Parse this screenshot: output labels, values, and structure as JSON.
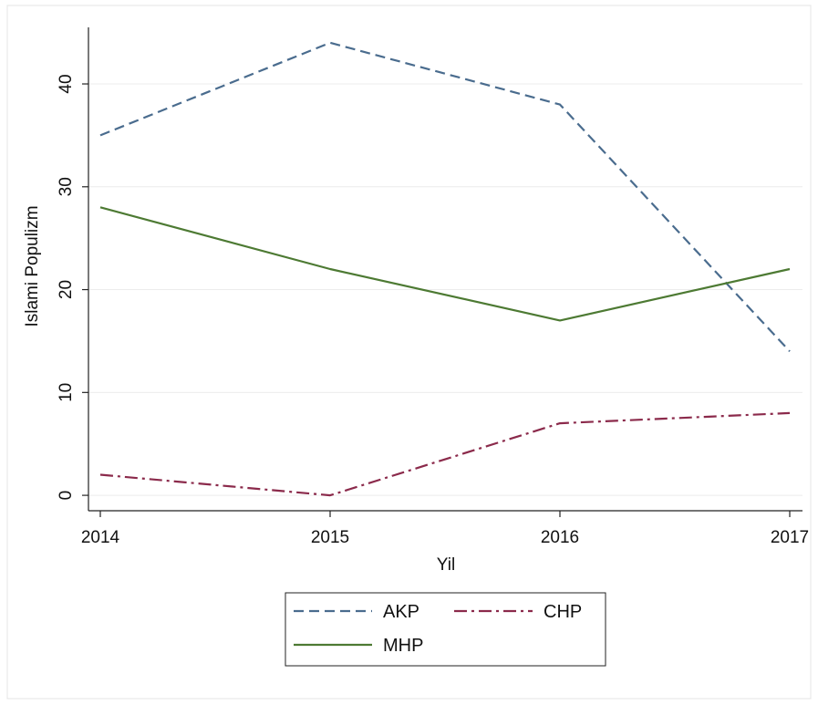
{
  "chart_data": {
    "type": "line",
    "title": "",
    "xlabel": "Yil",
    "ylabel": "Islami Populizm",
    "x": [
      2014,
      2015,
      2016,
      2017
    ],
    "x_tick_labels": [
      "2014",
      "2015",
      "2016",
      "2017"
    ],
    "y_ticks": [
      0,
      10,
      20,
      30,
      40
    ],
    "y_tick_labels": [
      "0",
      "10",
      "20",
      "30",
      "40"
    ],
    "xlim": [
      2014,
      2017
    ],
    "ylim": [
      -1.5,
      45.5
    ],
    "grid": "horizontal",
    "legend_position": "bottom",
    "series": [
      {
        "name": "AKP",
        "values": [
          35,
          44,
          38,
          14
        ],
        "color": "#4a6c8e",
        "style": "dashed"
      },
      {
        "name": "CHP",
        "values": [
          2,
          0,
          7,
          8
        ],
        "color": "#8b2a4b",
        "style": "dash-dot"
      },
      {
        "name": "MHP",
        "values": [
          28,
          22,
          17,
          22
        ],
        "color": "#4d7a33",
        "style": "solid"
      }
    ]
  }
}
